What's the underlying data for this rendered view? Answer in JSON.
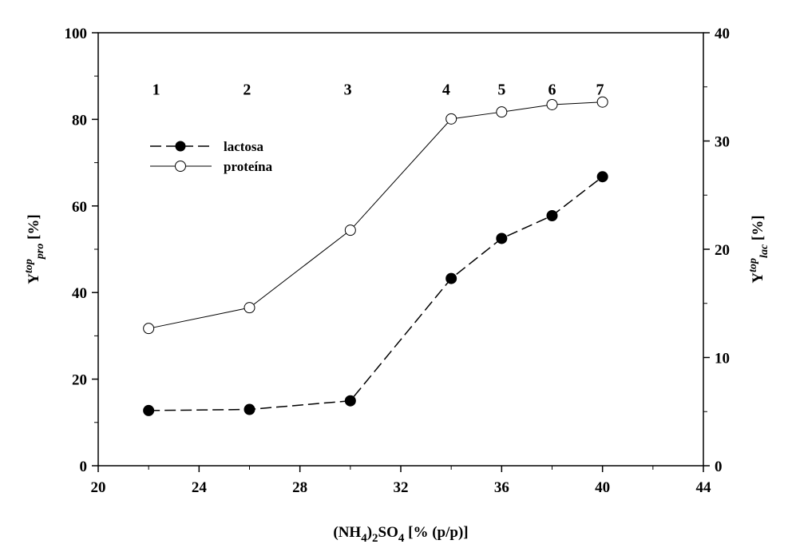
{
  "chart_data": {
    "type": "line",
    "title": "",
    "xlabel": {
      "main": "(NH",
      "sub1": "4",
      "mid": ")",
      "sub2": "2",
      "so": "SO",
      "sub3": "4",
      "rest": " [% (p/p)]"
    },
    "ylabel_left": {
      "base": "Y",
      "sup": "top",
      "sub": "pro",
      "unit": " [%]"
    },
    "ylabel_right": {
      "base": "Y",
      "sup": "top",
      "sub": "lac",
      "unit": " [%]"
    },
    "xlim": [
      20,
      44
    ],
    "ylim_left": [
      0,
      100
    ],
    "ylim_right": [
      0,
      40
    ],
    "x_ticks": [
      20,
      24,
      28,
      32,
      36,
      40,
      44
    ],
    "y_ticks_left": [
      0,
      20,
      40,
      60,
      80,
      100
    ],
    "y_ticks_right": [
      0,
      10,
      20,
      30,
      40
    ],
    "grid": false,
    "legend_position": "upper-left",
    "series": [
      {
        "name": "lactosa",
        "axis": "right",
        "style": "dashed",
        "marker": "filled-circle",
        "x": [
          22,
          26,
          30,
          34,
          36,
          38,
          40
        ],
        "values": [
          5.1,
          5.2,
          6.0,
          17.3,
          21.0,
          23.1,
          26.7
        ]
      },
      {
        "name": "proteína",
        "axis": "left",
        "style": "solid",
        "marker": "open-circle",
        "x": [
          22,
          26,
          30,
          34,
          36,
          38,
          40
        ],
        "values": [
          31.7,
          36.5,
          54.4,
          80.1,
          81.7,
          83.4,
          84.0
        ]
      }
    ],
    "annotations": [
      {
        "text": "1",
        "x": 22.3
      },
      {
        "text": "2",
        "x": 25.9
      },
      {
        "text": "3",
        "x": 29.9
      },
      {
        "text": "4",
        "x": 33.8
      },
      {
        "text": "5",
        "x": 36.0
      },
      {
        "text": "6",
        "x": 38.0
      },
      {
        "text": "7",
        "x": 39.9
      }
    ],
    "annotation_y_left": 87
  }
}
